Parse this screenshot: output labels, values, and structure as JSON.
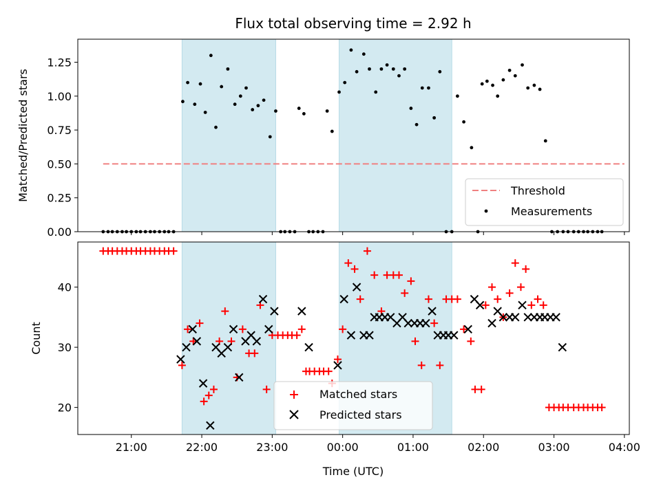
{
  "chart_data": {
    "title": "Flux total observing time = 2.92 h",
    "xlabel": "Time (UTC)",
    "x_ticks": [
      "21:00",
      "22:00",
      "23:00",
      "00:00",
      "01:00",
      "02:00",
      "03:00",
      "04:00"
    ],
    "x_tick_hours": [
      21,
      22,
      23,
      24,
      25,
      26,
      27,
      28
    ],
    "xlim_hours": [
      20.24,
      28.07
    ],
    "shaded_intervals_hours": [
      [
        21.72,
        23.05
      ],
      [
        23.95,
        25.55
      ]
    ],
    "shade_color": "#d3eaf1",
    "panels": [
      {
        "type": "scatter",
        "ylabel": "Matched/Predicted stars",
        "ylim": [
          0,
          1.42
        ],
        "y_ticks": [
          "0.00",
          "0.25",
          "0.50",
          "0.75",
          "1.00",
          "1.25"
        ],
        "y_tick_values": [
          0,
          0.25,
          0.5,
          0.75,
          1.0,
          1.25
        ],
        "threshold": {
          "name": "Threshold",
          "value": 0.5,
          "x_range_hours": [
            20.6,
            28.0
          ],
          "color": "#f08080"
        },
        "legend": {
          "placement": "lower-right",
          "entries": [
            "Threshold",
            "Measurements"
          ]
        },
        "series": [
          {
            "name": "Measurements",
            "color": "#000000",
            "x_hours": [
              20.6,
              20.67,
              20.73,
              20.8,
              20.87,
              20.93,
              21.0,
              21.07,
              21.13,
              21.2,
              21.27,
              21.33,
              21.4,
              21.47,
              21.53,
              21.6,
              21.73,
              21.8,
              21.9,
              21.98,
              22.05,
              22.13,
              22.2,
              22.28,
              22.37,
              22.47,
              22.55,
              22.63,
              22.72,
              22.8,
              22.88,
              22.97,
              23.05,
              23.12,
              23.18,
              23.25,
              23.32,
              23.38,
              23.45,
              23.52,
              23.58,
              23.65,
              23.72,
              23.78,
              23.85,
              23.95,
              24.03,
              24.12,
              24.2,
              24.3,
              24.38,
              24.47,
              24.55,
              24.63,
              24.72,
              24.8,
              24.88,
              24.97,
              25.05,
              25.13,
              25.22,
              25.3,
              25.38,
              25.47,
              25.55,
              25.63,
              25.72,
              25.83,
              25.92,
              25.98,
              26.05,
              26.13,
              26.2,
              26.28,
              26.37,
              26.45,
              26.55,
              26.63,
              26.72,
              26.8,
              26.88,
              26.97,
              27.05,
              27.13,
              27.2,
              27.28,
              27.35,
              27.42,
              27.48,
              27.55,
              27.62,
              27.68
            ],
            "y": [
              0,
              0,
              0,
              0,
              0,
              0,
              0,
              0,
              0,
              0,
              0,
              0,
              0,
              0,
              0,
              0,
              0.96,
              1.1,
              0.94,
              1.09,
              0.88,
              1.3,
              0.77,
              1.07,
              1.2,
              0.94,
              1.0,
              1.06,
              0.9,
              0.93,
              0.97,
              0.7,
              0.89,
              0,
              0,
              0,
              0,
              0.91,
              0.87,
              0,
              0,
              0,
              0,
              0.89,
              0.74,
              1.03,
              1.1,
              1.34,
              1.18,
              1.31,
              1.2,
              1.03,
              1.2,
              1.23,
              1.2,
              1.15,
              1.2,
              0.91,
              0.79,
              1.06,
              1.06,
              0.84,
              1.18,
              0,
              0,
              1.0,
              0.81,
              0.62,
              0,
              1.09,
              1.11,
              1.08,
              1.0,
              1.12,
              1.19,
              1.15,
              1.23,
              1.06,
              1.08,
              1.05,
              0.67,
              0,
              0,
              0,
              0,
              0,
              0,
              0,
              0,
              0,
              0,
              0
            ]
          }
        ]
      },
      {
        "type": "scatter",
        "ylabel": "Count",
        "ylim": [
          15.5,
          47.5
        ],
        "y_ticks": [
          "20",
          "30",
          "40"
        ],
        "y_tick_values": [
          20,
          30,
          40
        ],
        "legend": {
          "placement": "lower-center",
          "entries": [
            "Matched stars",
            "Predicted stars"
          ]
        },
        "series": [
          {
            "name": "Matched stars",
            "marker": "plus",
            "color": "#ff0000",
            "x_hours": [
              20.6,
              20.67,
              20.73,
              20.8,
              20.87,
              20.93,
              21.0,
              21.07,
              21.13,
              21.2,
              21.27,
              21.33,
              21.4,
              21.47,
              21.53,
              21.6,
              21.72,
              21.8,
              21.88,
              21.97,
              22.03,
              22.1,
              22.17,
              22.25,
              22.33,
              22.42,
              22.5,
              22.58,
              22.67,
              22.75,
              22.83,
              22.92,
              23.0,
              23.08,
              23.15,
              23.22,
              23.28,
              23.35,
              23.42,
              23.48,
              23.53,
              23.6,
              23.67,
              23.73,
              23.8,
              23.85,
              23.93,
              24.0,
              24.08,
              24.17,
              24.25,
              24.35,
              24.45,
              24.55,
              24.63,
              24.72,
              24.8,
              24.88,
              24.97,
              25.03,
              25.12,
              25.22,
              25.3,
              25.38,
              25.47,
              25.55,
              25.63,
              25.72,
              25.82,
              25.88,
              25.97,
              26.03,
              26.12,
              26.2,
              26.28,
              26.37,
              26.45,
              26.53,
              26.6,
              26.68,
              26.77,
              26.85,
              26.93,
              27.0,
              27.07,
              27.13,
              27.2,
              27.28,
              27.35,
              27.42,
              27.48,
              27.55,
              27.62,
              27.68
            ],
            "y": [
              46,
              46,
              46,
              46,
              46,
              46,
              46,
              46,
              46,
              46,
              46,
              46,
              46,
              46,
              46,
              46,
              27,
              33,
              31,
              34,
              21,
              22,
              23,
              31,
              36,
              31,
              25,
              33,
              29,
              29,
              37,
              23,
              32,
              32,
              32,
              32,
              32,
              32,
              33,
              26,
              26,
              26,
              26,
              26,
              26,
              24,
              28,
              33,
              44,
              43,
              38,
              46,
              42,
              36,
              42,
              42,
              42,
              39,
              41,
              31,
              27,
              38,
              34,
              27,
              38,
              38,
              38,
              33,
              31,
              23,
              23,
              37,
              40,
              38,
              35,
              39,
              44,
              40,
              43,
              37,
              38,
              37,
              20,
              20,
              20,
              20,
              20,
              20,
              20,
              20,
              20,
              20,
              20,
              20
            ]
          },
          {
            "name": "Predicted stars",
            "marker": "x",
            "color": "#000000",
            "x_hours": [
              21.7,
              21.78,
              21.87,
              21.93,
              22.02,
              22.12,
              22.2,
              22.28,
              22.37,
              22.45,
              22.53,
              22.62,
              22.7,
              22.78,
              22.87,
              22.95,
              23.03,
              23.42,
              23.52,
              23.93,
              24.02,
              24.12,
              24.2,
              24.3,
              24.38,
              24.45,
              24.52,
              24.6,
              24.68,
              24.77,
              24.85,
              24.93,
              25.02,
              25.1,
              25.18,
              25.27,
              25.35,
              25.43,
              25.5,
              25.58,
              25.78,
              25.87,
              25.95,
              26.12,
              26.2,
              26.28,
              26.37,
              26.45,
              26.55,
              26.63,
              26.72,
              26.8,
              26.87,
              26.95,
              27.03,
              27.12
            ],
            "y": [
              28,
              30,
              33,
              31,
              24,
              17,
              30,
              29,
              30,
              33,
              25,
              31,
              32,
              31,
              38,
              33,
              36,
              36,
              30,
              27,
              38,
              32,
              40,
              32,
              32,
              35,
              35,
              35,
              35,
              34,
              35,
              34,
              34,
              34,
              34,
              36,
              32,
              32,
              32,
              32,
              33,
              38,
              37,
              34,
              36,
              35,
              35,
              35,
              37,
              35,
              35,
              35,
              35,
              35,
              35,
              30
            ]
          }
        ]
      }
    ]
  }
}
